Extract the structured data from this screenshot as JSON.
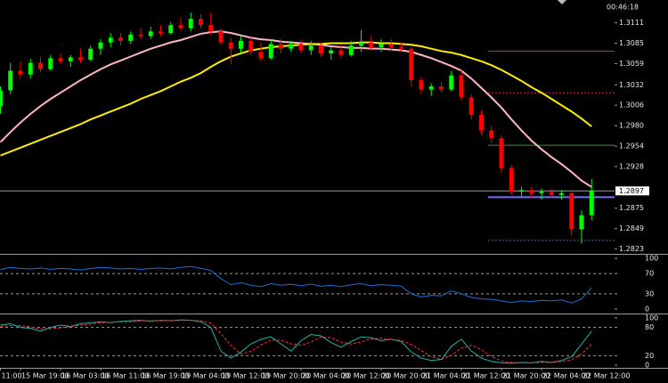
{
  "chart_data": [
    {
      "type": "candlestick",
      "clock": "00:46:18",
      "categories": [
        "11:00",
        null,
        "15 Mar 19:00",
        null,
        null,
        null,
        "16 Mar 03:00",
        null,
        null,
        null,
        "16 Mar 11:00",
        null,
        null,
        null,
        "16 Mar 19:00",
        null,
        null,
        null,
        "19 Mar 04:00",
        null,
        null,
        null,
        "19 Mar 12:00",
        null,
        null,
        null,
        "19 Mar 20:00",
        null,
        null,
        null,
        "20 Mar 04:00",
        null,
        null,
        null,
        "20 Mar 12:00",
        null,
        null,
        null,
        "20 Mar 20:00",
        null,
        null,
        null,
        "21 Mar 04:00",
        null,
        null,
        null,
        "21 Mar 12:00",
        null,
        null,
        null,
        "21 Mar 20:00",
        null,
        null,
        null,
        "22 Mar 04:00",
        null,
        null,
        null,
        "22 Mar 12:00",
        null
      ],
      "open": [
        1.3005,
        1.3025,
        1.305,
        1.3045,
        1.306,
        1.3052,
        1.3066,
        1.3062,
        1.3067,
        1.3064,
        1.3078,
        1.3086,
        1.3092,
        1.3088,
        1.3096,
        1.3094,
        1.31,
        1.3098,
        1.3108,
        1.3104,
        1.3116,
        1.3108,
        1.31,
        1.3086,
        1.3078,
        1.3088,
        1.3074,
        1.3066,
        1.3084,
        1.3078,
        1.3084,
        1.3076,
        1.3082,
        1.3072,
        1.3076,
        1.307,
        1.3082,
        1.3086,
        1.308,
        1.3084,
        1.308,
        1.3078,
        1.3038,
        1.3026,
        1.303,
        1.3026,
        1.3044,
        1.3016,
        1.2994,
        1.2974,
        1.2964,
        1.2926,
        1.2896,
        1.2898,
        1.2894,
        1.2896,
        1.2892,
        1.2894,
        1.2848,
        1.2866
      ],
      "high": [
        1.303,
        1.306,
        1.3062,
        1.3065,
        1.3068,
        1.307,
        1.3072,
        1.307,
        1.3078,
        1.3082,
        1.309,
        1.3098,
        1.3098,
        1.31,
        1.3104,
        1.3106,
        1.3108,
        1.3112,
        1.3118,
        1.3124,
        1.3122,
        1.3124,
        1.3104,
        1.3092,
        1.3094,
        1.3092,
        1.3086,
        1.309,
        1.309,
        1.3088,
        1.309,
        1.3088,
        1.3086,
        1.308,
        1.3084,
        1.3088,
        1.3102,
        1.3094,
        1.309,
        1.309,
        1.3086,
        1.308,
        1.3042,
        1.3034,
        1.3036,
        1.305,
        1.3052,
        1.302,
        1.3,
        1.298,
        1.2968,
        1.293,
        1.2902,
        1.2902,
        1.29,
        1.29,
        1.2898,
        1.2896,
        1.2872,
        1.2912
      ],
      "low": [
        1.2995,
        1.302,
        1.304,
        1.304,
        1.3048,
        1.305,
        1.3058,
        1.3055,
        1.306,
        1.3062,
        1.307,
        1.308,
        1.3082,
        1.3084,
        1.309,
        1.309,
        1.3094,
        1.3096,
        1.31,
        1.31,
        1.3104,
        1.3096,
        1.3082,
        1.3058,
        1.3072,
        1.307,
        1.3062,
        1.3064,
        1.3072,
        1.3074,
        1.3072,
        1.307,
        1.3068,
        1.3064,
        1.3066,
        1.3068,
        1.3074,
        1.3076,
        1.3074,
        1.3076,
        1.3074,
        1.303,
        1.302,
        1.3018,
        1.3022,
        1.3024,
        1.3012,
        1.2988,
        1.2968,
        1.2958,
        1.292,
        1.2892,
        1.289,
        1.2888,
        1.2886,
        1.2888,
        1.2886,
        1.284,
        1.283,
        1.286
      ],
      "close": [
        1.3025,
        1.305,
        1.3045,
        1.306,
        1.3052,
        1.3066,
        1.3062,
        1.3067,
        1.3064,
        1.3078,
        1.3086,
        1.3092,
        1.3088,
        1.3096,
        1.3094,
        1.31,
        1.3098,
        1.3108,
        1.3104,
        1.3116,
        1.3108,
        1.31,
        1.3086,
        1.3078,
        1.3088,
        1.3074,
        1.3066,
        1.3084,
        1.3078,
        1.3084,
        1.3076,
        1.3082,
        1.3072,
        1.3076,
        1.307,
        1.3082,
        1.3086,
        1.308,
        1.3084,
        1.308,
        1.3078,
        1.3038,
        1.3026,
        1.303,
        1.3026,
        1.3044,
        1.3016,
        1.2994,
        1.2974,
        1.2964,
        1.2926,
        1.2896,
        1.2898,
        1.2894,
        1.2896,
        1.2892,
        1.2894,
        1.2848,
        1.2866,
        1.2897
      ],
      "up_color": "#00ff00",
      "down_color": "#ff0000",
      "lines": [
        {
          "color": "#ffb6c1",
          "values": [
            1.2959,
            1.2972,
            1.2984,
            1.2995,
            1.3005,
            1.3014,
            1.3022,
            1.303,
            1.3038,
            1.3045,
            1.3052,
            1.3058,
            1.3063,
            1.3068,
            1.3073,
            1.3078,
            1.3082,
            1.3086,
            1.3089,
            1.3093,
            1.3097,
            1.3099,
            1.31,
            1.3098,
            1.3095,
            1.3092,
            1.309,
            1.3089,
            1.3087,
            1.3086,
            1.3085,
            1.3084,
            1.3083,
            1.3081,
            1.308,
            1.3079,
            1.3079,
            1.3078,
            1.3078,
            1.3077,
            1.3076,
            1.3074,
            1.307,
            1.3066,
            1.3061,
            1.3056,
            1.305,
            1.304,
            1.3028,
            1.3016,
            1.3003,
            1.2988,
            1.2974,
            1.2961,
            1.295,
            1.294,
            1.2931,
            1.2921,
            1.291,
            1.2902
          ]
        },
        {
          "color": "#ffee00",
          "values": [
            1.2942,
            1.2947,
            1.2952,
            1.2957,
            1.2962,
            1.2967,
            1.2972,
            1.2977,
            1.2982,
            1.2988,
            1.2993,
            1.2998,
            1.3003,
            1.3008,
            1.3014,
            1.3019,
            1.3024,
            1.303,
            1.3036,
            1.3041,
            1.3047,
            1.3055,
            1.3062,
            1.3068,
            1.3072,
            1.3076,
            1.3078,
            1.308,
            1.3081,
            1.3082,
            1.3083,
            1.3084,
            1.3084,
            1.3085,
            1.3085,
            1.3085,
            1.3086,
            1.3086,
            1.3085,
            1.3085,
            1.3084,
            1.3083,
            1.3081,
            1.3078,
            1.3075,
            1.3073,
            1.307,
            1.3066,
            1.3062,
            1.3057,
            1.3051,
            1.3044,
            1.3037,
            1.3029,
            1.3022,
            1.3014,
            1.3006,
            1.2998,
            1.2989,
            1.2979
          ]
        }
      ],
      "levels": [
        {
          "value": 1.3075,
          "color": "#e0109a",
          "style": "solid"
        },
        {
          "value": 1.3022,
          "color": "#ff2020",
          "style": "dotted"
        },
        {
          "value": 1.2955,
          "color": "#2aa02a",
          "style": "solid"
        },
        {
          "value": 1.2889,
          "color": "#7070ff",
          "style": "thick"
        },
        {
          "value": 1.2834,
          "color": "#3a6bd8",
          "style": "dotted"
        }
      ],
      "current_price": 1.2897,
      "ylim": [
        1.2818,
        1.314
      ],
      "yticks": [
        1.3111,
        1.3085,
        1.3059,
        1.3032,
        1.3006,
        {
          "value": 1.298,
          "label": "1.2980"
        },
        1.2954,
        1.2928,
        1.2875,
        1.2849,
        1.2823
      ]
    },
    {
      "type": "line",
      "series": [
        {
          "color": "#1e6fd9",
          "values": [
            78,
            82,
            80,
            79,
            81,
            78,
            80,
            79,
            77,
            80,
            82,
            81,
            79,
            80,
            78,
            80,
            81,
            79,
            82,
            84,
            80,
            76,
            60,
            48,
            52,
            47,
            44,
            50,
            47,
            49,
            46,
            49,
            45,
            47,
            44,
            48,
            50,
            46,
            48,
            47,
            45,
            30,
            24,
            27,
            26,
            36,
            30,
            23,
            20,
            19,
            16,
            13,
            16,
            15,
            17,
            16,
            18,
            12,
            20,
            42
          ]
        }
      ],
      "ylim": [
        0,
        100
      ],
      "yticks": [
        100,
        70,
        30,
        0
      ],
      "grid": "dashed"
    },
    {
      "type": "line",
      "series": [
        {
          "color": "#20b2aa",
          "values": [
            85,
            88,
            80,
            78,
            72,
            80,
            85,
            82,
            88,
            90,
            92,
            90,
            93,
            94,
            95,
            93,
            95,
            94,
            96,
            95,
            92,
            80,
            30,
            15,
            28,
            45,
            55,
            60,
            45,
            30,
            52,
            65,
            62,
            48,
            38,
            50,
            60,
            58,
            52,
            55,
            50,
            28,
            15,
            10,
            12,
            40,
            55,
            30,
            15,
            8,
            5,
            4,
            6,
            5,
            8,
            6,
            10,
            18,
            45,
            72
          ]
        },
        {
          "color": "#ff3030",
          "dash": true,
          "values": [
            82,
            84,
            84,
            81,
            77,
            77,
            79,
            82,
            85,
            87,
            90,
            91,
            92,
            92,
            94,
            94,
            94,
            94,
            95,
            95,
            94,
            89,
            67,
            42,
            24,
            29,
            43,
            53,
            53,
            45,
            42,
            49,
            60,
            58,
            49,
            45,
            49,
            56,
            57,
            55,
            52,
            44,
            31,
            18,
            12,
            21,
            36,
            42,
            33,
            18,
            9,
            6,
            5,
            5,
            6,
            6,
            8,
            11,
            24,
            45
          ]
        }
      ],
      "ylim": [
        0,
        100
      ],
      "yticks": [
        100,
        80,
        20,
        0
      ],
      "grid": "dashed"
    }
  ]
}
